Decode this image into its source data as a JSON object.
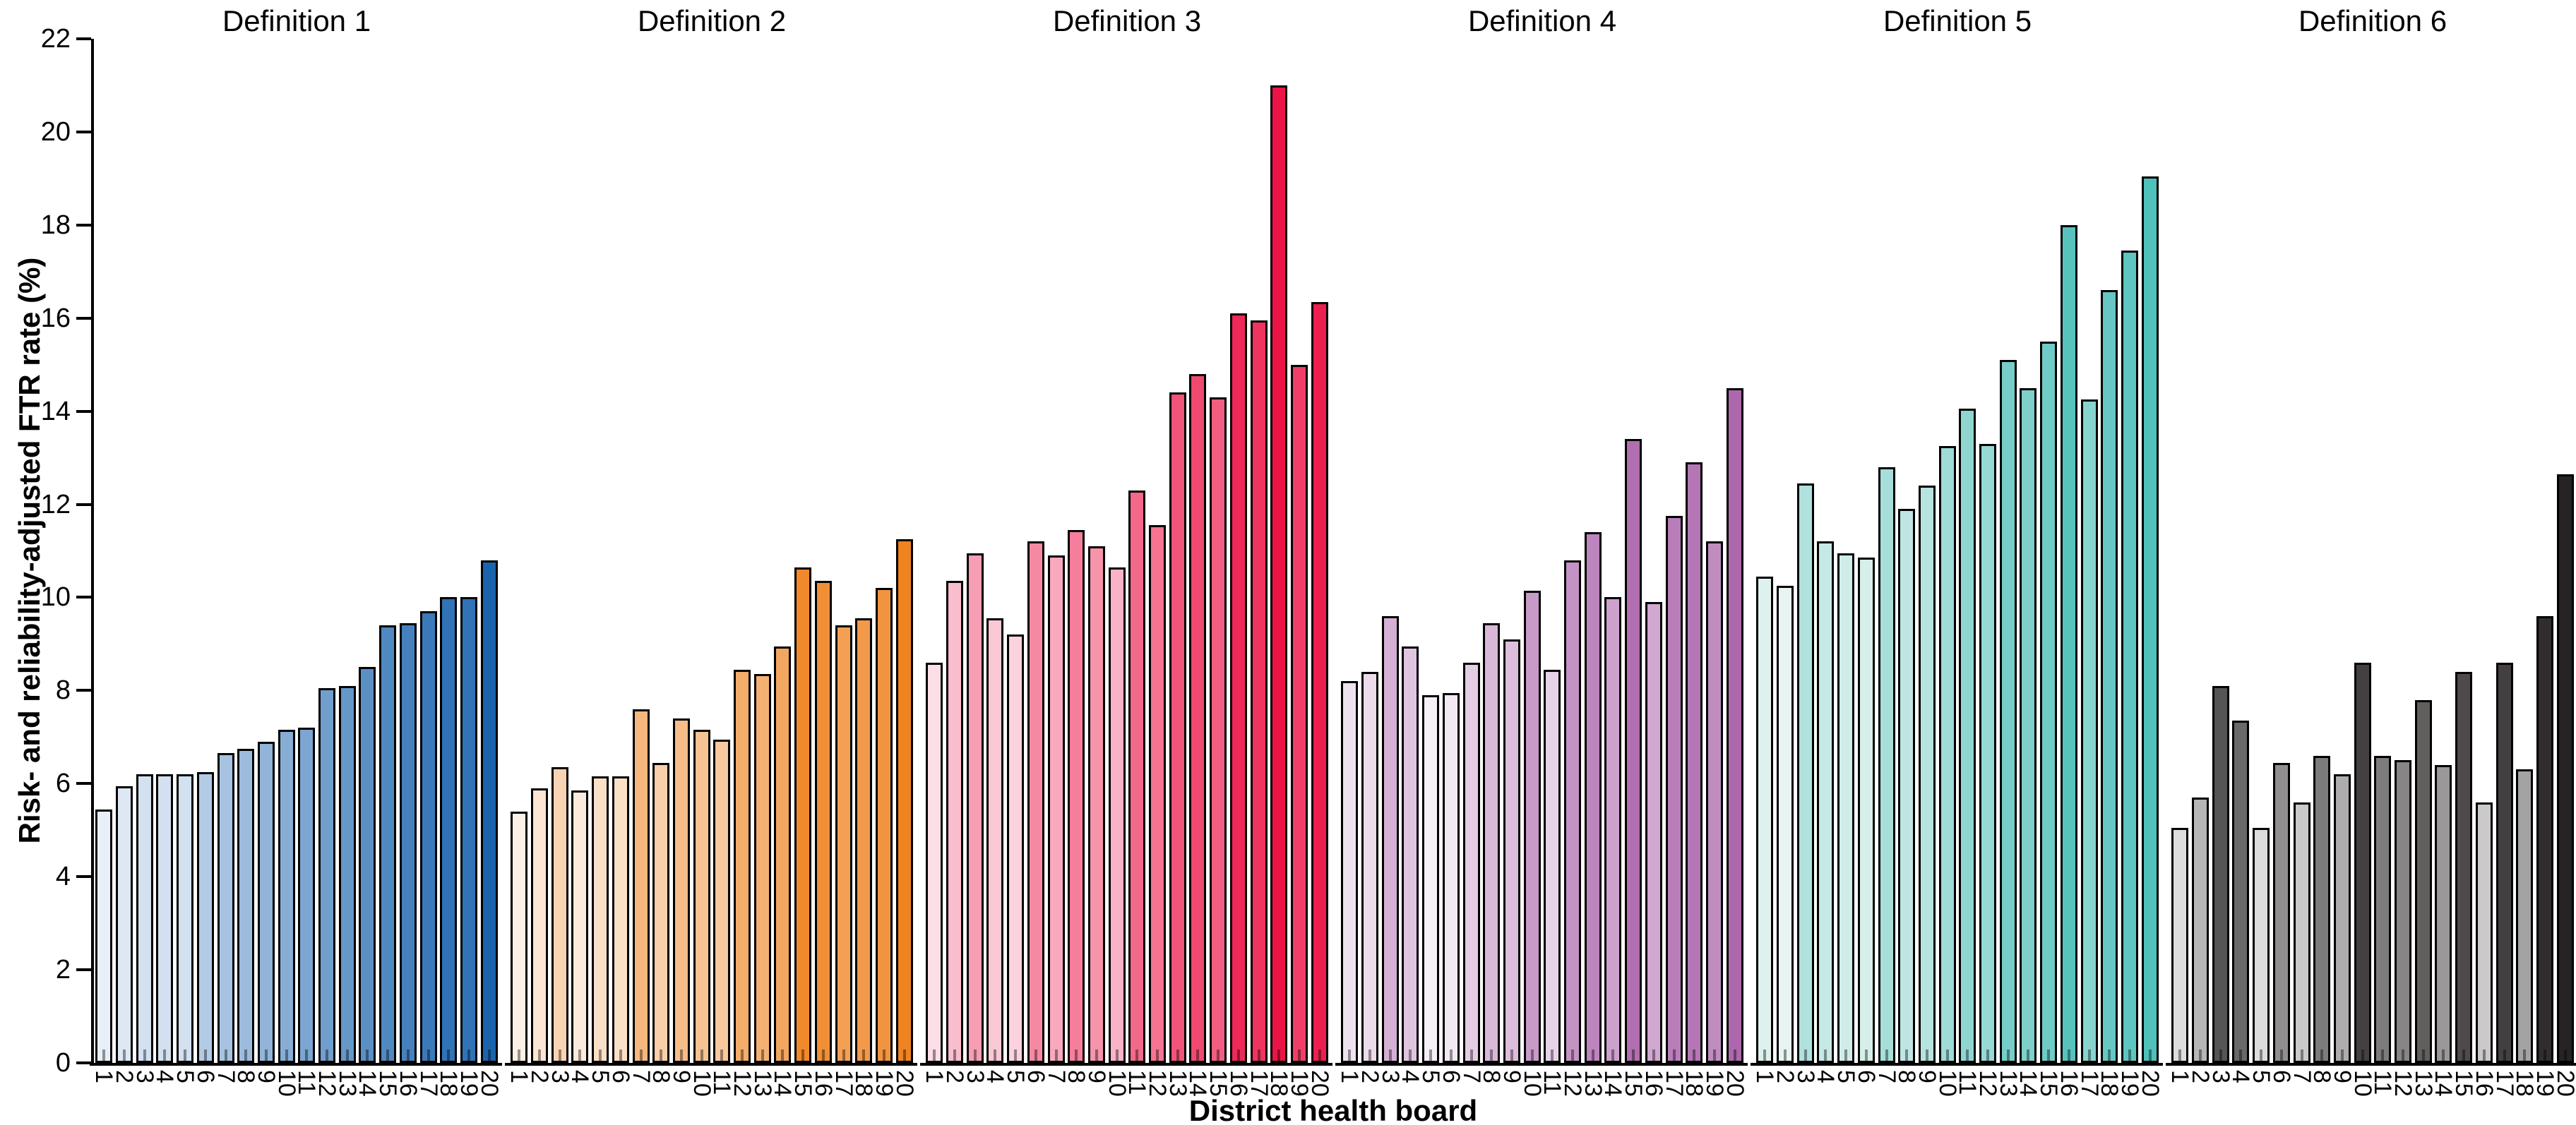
{
  "figure": {
    "xlabel": "District health board",
    "ylabel": "Risk- and reliability-adjusted FTR rate (%)"
  },
  "chart_data": {
    "type": "bar",
    "title": "",
    "xlabel": "District health board",
    "ylabel": "Risk- and reliability-adjusted FTR rate (%)",
    "ylim": [
      0,
      22
    ],
    "yticks": [
      0,
      2,
      4,
      6,
      8,
      10,
      12,
      14,
      16,
      18,
      20,
      22
    ],
    "grid": false,
    "legend": "none",
    "categories": [
      "1",
      "2",
      "3",
      "4",
      "5",
      "6",
      "7",
      "8",
      "9",
      "10",
      "11",
      "12",
      "13",
      "14",
      "15",
      "16",
      "17",
      "18",
      "19",
      "20"
    ],
    "note": "Six small-multiple panels; within each panel bar fill shade is ranked light-to-dark by bar value",
    "panels": [
      {
        "title": "Definition 1",
        "color_light": "#e9eff8",
        "color_dark": "#1a64ae",
        "values": [
          5.45,
          5.95,
          6.2,
          6.2,
          6.2,
          6.25,
          6.65,
          6.75,
          6.9,
          7.15,
          7.2,
          8.05,
          8.1,
          8.5,
          9.4,
          9.45,
          9.7,
          10.0,
          10.0,
          10.8
        ]
      },
      {
        "title": "Definition 2",
        "color_light": "#fdf1e7",
        "color_dark": "#ef8320",
        "values": [
          5.4,
          5.9,
          6.35,
          5.85,
          6.15,
          6.15,
          7.6,
          6.45,
          7.4,
          7.15,
          6.95,
          8.45,
          8.35,
          8.95,
          10.65,
          10.35,
          9.4,
          9.55,
          10.2,
          11.25
        ]
      },
      {
        "title": "Definition 3",
        "color_light": "#fcdee7",
        "color_dark": "#ec1446",
        "values": [
          8.6,
          10.35,
          10.95,
          9.55,
          9.2,
          11.2,
          10.9,
          11.45,
          11.1,
          10.65,
          12.3,
          11.55,
          14.4,
          14.8,
          14.3,
          16.1,
          15.95,
          21.0,
          15.0,
          16.35
        ]
      },
      {
        "title": "Definition 4",
        "color_light": "#f7f0f7",
        "color_dark": "#ad68ad",
        "values": [
          8.2,
          8.4,
          9.6,
          8.95,
          7.9,
          7.95,
          8.6,
          9.45,
          9.1,
          10.15,
          8.45,
          10.8,
          11.4,
          10.0,
          13.4,
          9.9,
          11.75,
          12.9,
          11.2,
          14.5
        ]
      },
      {
        "title": "Definition 5",
        "color_light": "#e7f4f1",
        "color_dark": "#4fc0ba",
        "values": [
          10.45,
          10.25,
          12.45,
          11.2,
          10.95,
          10.85,
          12.8,
          11.9,
          12.4,
          13.25,
          14.05,
          13.3,
          15.1,
          14.5,
          15.5,
          18.0,
          14.25,
          16.6,
          17.45,
          19.05
        ]
      },
      {
        "title": "Definition 6",
        "color_light": "#dedddd",
        "color_dark": "#272324",
        "values": [
          5.05,
          5.7,
          8.1,
          7.35,
          5.05,
          6.45,
          5.6,
          6.6,
          6.2,
          8.6,
          6.6,
          6.5,
          7.8,
          6.4,
          8.4,
          5.6,
          8.6,
          6.3,
          9.6,
          12.65
        ]
      }
    ]
  },
  "layout_hints": {
    "bar_outline_color": "#000000",
    "background": "#ffffff"
  }
}
